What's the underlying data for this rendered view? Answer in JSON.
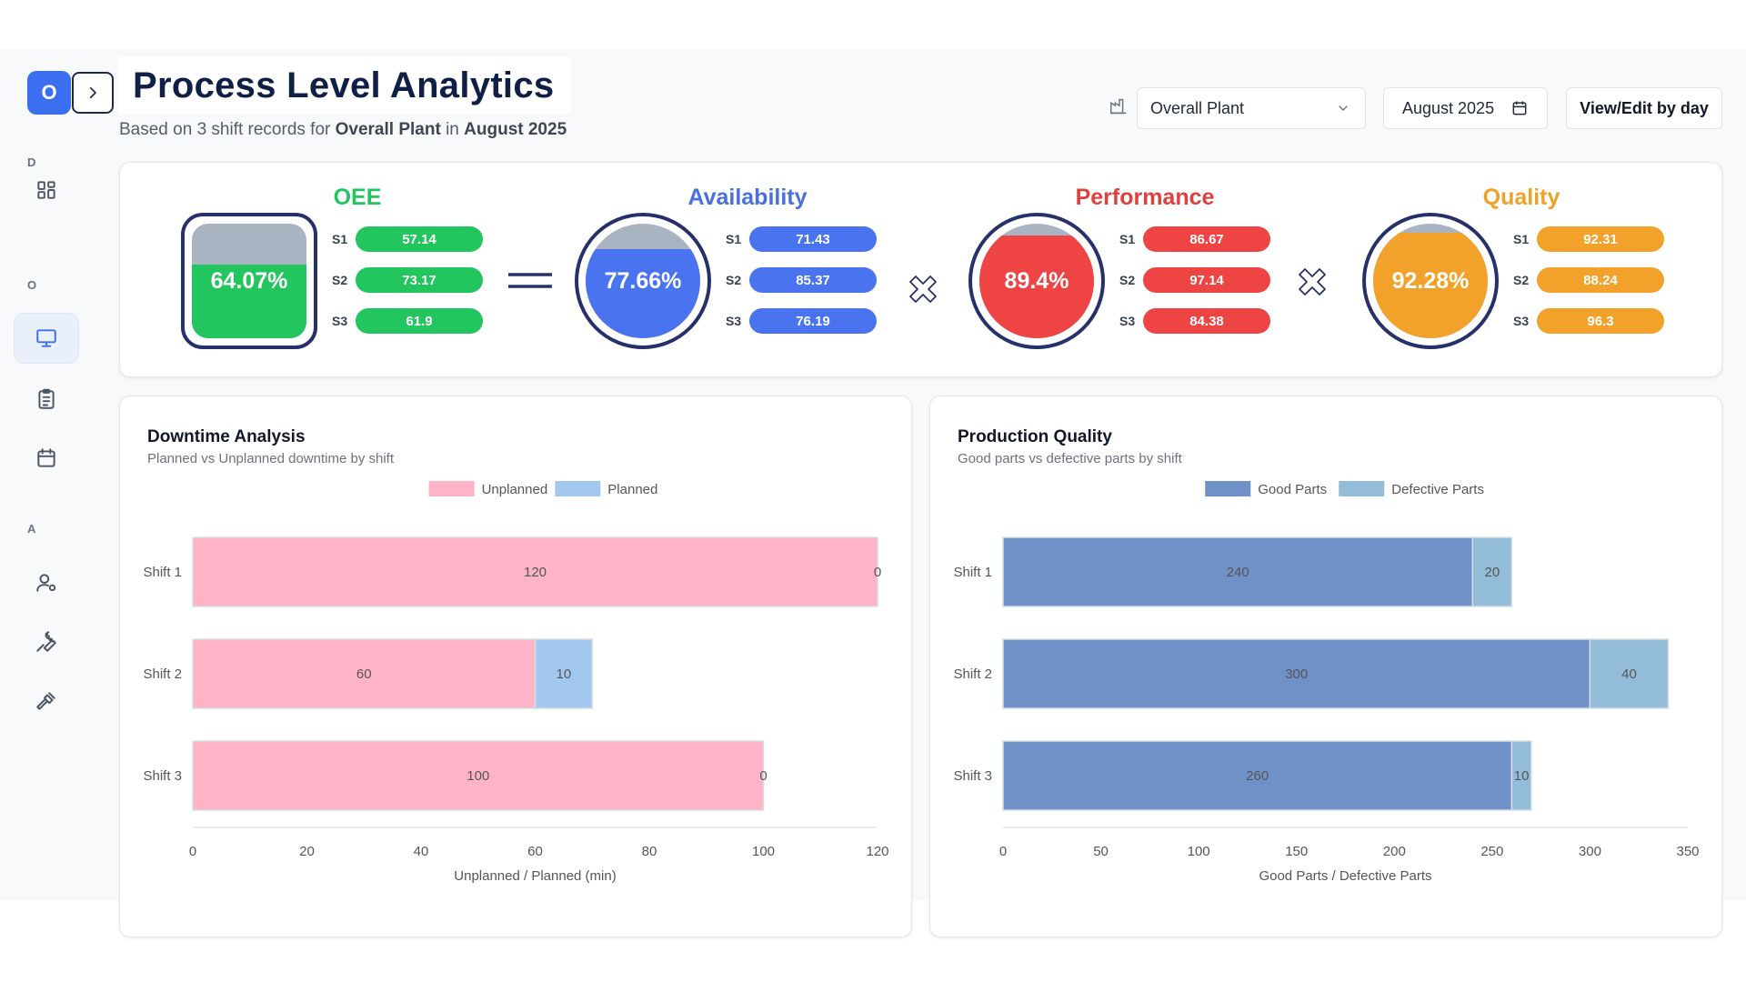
{
  "sidebar": {
    "logo": "O",
    "sections": [
      "D",
      "O",
      "A"
    ],
    "icons": [
      "dashboard-icon",
      "monitor-icon",
      "clipboard-icon",
      "calendar-icon",
      "user-settings-icon",
      "wrench-icon",
      "hammer-icon"
    ]
  },
  "header": {
    "title": "Process Level Analytics",
    "subtitle_prefix": "Based on 3 shift records for ",
    "subtitle_plant": "Overall Plant",
    "subtitle_mid": " in ",
    "subtitle_month": "August 2025",
    "plant_select": "Overall Plant",
    "month_picker": "August 2025",
    "view_button": "View/Edit by day"
  },
  "kpis": {
    "oee": {
      "title": "OEE",
      "value": "64.07%",
      "fraction": 0.6407,
      "color": "#22c55e",
      "title_color": "#22c55e",
      "shifts": [
        {
          "label": "S1",
          "value": "57.14"
        },
        {
          "label": "S2",
          "value": "73.17"
        },
        {
          "label": "S3",
          "value": "61.9"
        }
      ]
    },
    "availability": {
      "title": "Availability",
      "value": "77.66%",
      "fraction": 0.7766,
      "color": "#4a74ef",
      "title_color": "#4a6fe0",
      "shifts": [
        {
          "label": "S1",
          "value": "71.43"
        },
        {
          "label": "S2",
          "value": "85.37"
        },
        {
          "label": "S3",
          "value": "76.19"
        }
      ]
    },
    "performance": {
      "title": "Performance",
      "value": "89.4%",
      "fraction": 0.894,
      "color": "#ef4444",
      "title_color": "#e03f3f",
      "shifts": [
        {
          "label": "S1",
          "value": "86.67"
        },
        {
          "label": "S2",
          "value": "97.14"
        },
        {
          "label": "S3",
          "value": "84.38"
        }
      ]
    },
    "quality": {
      "title": "Quality",
      "value": "92.28%",
      "fraction": 0.9228,
      "color": "#f2a22b",
      "title_color": "#eea22a",
      "shifts": [
        {
          "label": "S1",
          "value": "92.31"
        },
        {
          "label": "S2",
          "value": "88.24"
        },
        {
          "label": "S3",
          "value": "96.3"
        }
      ]
    }
  },
  "chart_data": [
    {
      "type": "bar",
      "orientation": "horizontal",
      "stacked": true,
      "title": "Downtime Analysis",
      "subtitle": "Planned vs Unplanned downtime by shift",
      "categories": [
        "Shift 1",
        "Shift 2",
        "Shift 3"
      ],
      "series": [
        {
          "name": "Unplanned",
          "values": [
            120,
            60,
            100
          ],
          "color": "#ffb3c6"
        },
        {
          "name": "Planned",
          "values": [
            0,
            10,
            0
          ],
          "color": "#a3c8f0"
        }
      ],
      "xlabel": "Unplanned / Planned (min)",
      "xlim": [
        0,
        120
      ],
      "xticks": [
        0,
        20,
        40,
        60,
        80,
        100,
        120
      ],
      "legend": "top-center",
      "grid": false
    },
    {
      "type": "bar",
      "orientation": "horizontal",
      "stacked": true,
      "title": "Production Quality",
      "subtitle": "Good parts vs defective parts by shift",
      "categories": [
        "Shift 1",
        "Shift 2",
        "Shift 3"
      ],
      "series": [
        {
          "name": "Good Parts",
          "values": [
            240,
            300,
            260
          ],
          "color": "#6f91c7"
        },
        {
          "name": "Defective Parts",
          "values": [
            20,
            40,
            10
          ],
          "color": "#93bcd8"
        }
      ],
      "xlabel": "Good Parts / Defective Parts",
      "xlim": [
        0,
        350
      ],
      "xticks": [
        0,
        50,
        100,
        150,
        200,
        250,
        300,
        350
      ],
      "legend": "top-center",
      "grid": false
    }
  ]
}
